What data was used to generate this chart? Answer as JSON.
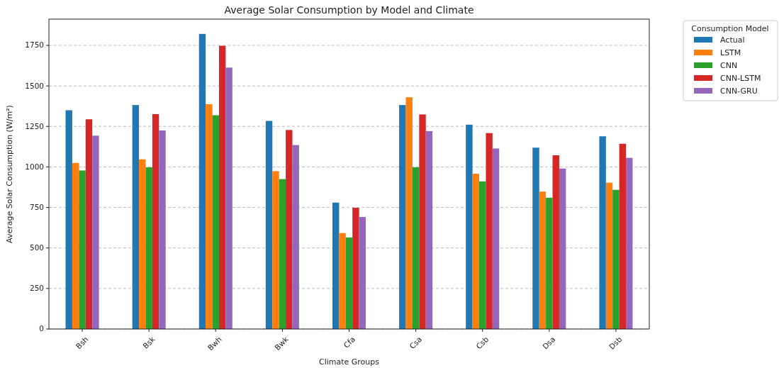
{
  "chart_data": {
    "type": "bar",
    "title": "Average Solar Consumption by Model and Climate",
    "xlabel": "Climate Groups",
    "ylabel": "Average Solar Consumption (W/m²)",
    "legend_title": "Consumption Model",
    "categories": [
      "Bsh",
      "Bsk",
      "Bwh",
      "Bwk",
      "Cfa",
      "Csa",
      "Csb",
      "Dsa",
      "Dsb"
    ],
    "series": [
      {
        "name": "Actual",
        "color": "#1f77b4",
        "values": [
          1350,
          1382,
          1821,
          1284,
          780,
          1382,
          1261,
          1119,
          1189
        ]
      },
      {
        "name": "LSTM",
        "color": "#ff7f0e",
        "values": [
          1025,
          1047,
          1387,
          974,
          592,
          1430,
          958,
          848,
          903
        ]
      },
      {
        "name": "CNN",
        "color": "#2ca02c",
        "values": [
          978,
          998,
          1319,
          925,
          565,
          998,
          911,
          810,
          859
        ]
      },
      {
        "name": "CNN-LSTM",
        "color": "#d62728",
        "values": [
          1294,
          1326,
          1748,
          1228,
          748,
          1324,
          1209,
          1072,
          1143
        ]
      },
      {
        "name": "CNN-GRU",
        "color": "#9467bd",
        "values": [
          1193,
          1225,
          1613,
          1135,
          691,
          1221,
          1114,
          990,
          1056
        ]
      }
    ],
    "ylim": [
      0,
      1912
    ],
    "yticks": [
      0,
      250,
      500,
      750,
      1000,
      1250,
      1500,
      1750
    ],
    "grid": "y",
    "legend": "top right"
  }
}
